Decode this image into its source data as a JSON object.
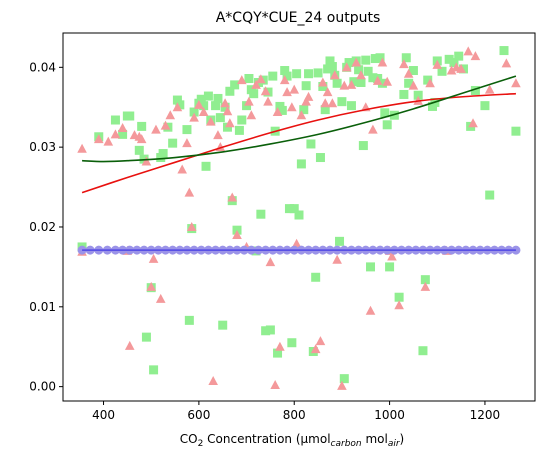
{
  "chart_data": {
    "type": "scatter",
    "title": "A*CQY*CUE_24 outputs",
    "xlabel": {
      "prefix": "CO",
      "sub1": "2",
      "mid": " Concentration (µmol",
      "sub2": "carbon",
      "mid2": " mol",
      "sub3": "air",
      "suffix": ")"
    },
    "ylabel": "",
    "xlim": [
      315,
      1305
    ],
    "ylim": [
      -0.0018,
      0.0443
    ],
    "xticks": [
      400,
      600,
      800,
      1000,
      1200
    ],
    "xtick_labels": [
      "400",
      "600",
      "800",
      "1000",
      "1200"
    ],
    "yticks": [
      0.0,
      0.01,
      0.02,
      0.03,
      0.04
    ],
    "ytick_labels": [
      "0.00",
      "0.01",
      "0.02",
      "0.03",
      "0.04"
    ],
    "grid": false,
    "colors": {
      "green_points": "#90ee90",
      "red_points": "#f4999b",
      "blue_points": "#9b93e8",
      "blue_line": "#4f46e5",
      "red_curve": "#e8110f",
      "green_curve": "#0a5f0a"
    },
    "series": [
      {
        "marker": "square",
        "color": "#90ee90",
        "points": [
          [
            355,
            0.0175
          ],
          [
            390,
            0.0313
          ],
          [
            425,
            0.0334
          ],
          [
            440,
            0.0316
          ],
          [
            450,
            0.0339
          ],
          [
            455,
            0.0339
          ],
          [
            475,
            0.0296
          ],
          [
            480,
            0.0326
          ],
          [
            485,
            0.0285
          ],
          [
            490,
            0.0062
          ],
          [
            500,
            0.0124
          ],
          [
            505,
            0.0021
          ],
          [
            520,
            0.0287
          ],
          [
            525,
            0.0292
          ],
          [
            535,
            0.0325
          ],
          [
            545,
            0.0305
          ],
          [
            555,
            0.0359
          ],
          [
            560,
            0.0353
          ],
          [
            575,
            0.0322
          ],
          [
            580,
            0.0083
          ],
          [
            585,
            0.0198
          ],
          [
            590,
            0.0344
          ],
          [
            600,
            0.0355
          ],
          [
            605,
            0.036
          ],
          [
            610,
            0.0352
          ],
          [
            615,
            0.0276
          ],
          [
            620,
            0.0364
          ],
          [
            625,
            0.0334
          ],
          [
            635,
            0.0352
          ],
          [
            640,
            0.0361
          ],
          [
            645,
            0.0337
          ],
          [
            650,
            0.0077
          ],
          [
            655,
            0.035
          ],
          [
            660,
            0.0325
          ],
          [
            665,
            0.037
          ],
          [
            670,
            0.0233
          ],
          [
            675,
            0.0378
          ],
          [
            680,
            0.0196
          ],
          [
            685,
            0.0321
          ],
          [
            690,
            0.0334
          ],
          [
            700,
            0.0352
          ],
          [
            705,
            0.0386
          ],
          [
            710,
            0.0372
          ],
          [
            715,
            0.0367
          ],
          [
            720,
            0.017
          ],
          [
            725,
            0.0381
          ],
          [
            730,
            0.0216
          ],
          [
            735,
            0.0384
          ],
          [
            740,
            0.007
          ],
          [
            745,
            0.0369
          ],
          [
            750,
            0.0071
          ],
          [
            755,
            0.0389
          ],
          [
            760,
            0.032
          ],
          [
            765,
            0.0042
          ],
          [
            770,
            0.0351
          ],
          [
            775,
            0.0346
          ],
          [
            780,
            0.0396
          ],
          [
            785,
            0.0389
          ],
          [
            790,
            0.0223
          ],
          [
            795,
            0.0055
          ],
          [
            800,
            0.0223
          ],
          [
            805,
            0.0392
          ],
          [
            810,
            0.0215
          ],
          [
            815,
            0.0279
          ],
          [
            820,
            0.0347
          ],
          [
            825,
            0.0377
          ],
          [
            830,
            0.0392
          ],
          [
            835,
            0.0304
          ],
          [
            840,
            0.0044
          ],
          [
            845,
            0.0137
          ],
          [
            850,
            0.0393
          ],
          [
            855,
            0.0287
          ],
          [
            860,
            0.0376
          ],
          [
            865,
            0.0347
          ],
          [
            870,
            0.0398
          ],
          [
            875,
            0.0408
          ],
          [
            880,
            0.0401
          ],
          [
            885,
            0.039
          ],
          [
            890,
            0.038
          ],
          [
            895,
            0.0182
          ],
          [
            900,
            0.0357
          ],
          [
            905,
            0.001
          ],
          [
            910,
            0.04
          ],
          [
            915,
            0.0406
          ],
          [
            920,
            0.0352
          ],
          [
            925,
            0.0382
          ],
          [
            930,
            0.0408
          ],
          [
            935,
            0.0397
          ],
          [
            940,
            0.0381
          ],
          [
            945,
            0.0302
          ],
          [
            950,
            0.0409
          ],
          [
            955,
            0.0395
          ],
          [
            960,
            0.015
          ],
          [
            965,
            0.0387
          ],
          [
            970,
            0.0411
          ],
          [
            975,
            0.0386
          ],
          [
            980,
            0.0412
          ],
          [
            985,
            0.038
          ],
          [
            990,
            0.0343
          ],
          [
            995,
            0.0328
          ],
          [
            1000,
            0.015
          ],
          [
            1010,
            0.034
          ],
          [
            1020,
            0.0112
          ],
          [
            1030,
            0.0366
          ],
          [
            1035,
            0.0412
          ],
          [
            1040,
            0.038
          ],
          [
            1050,
            0.0396
          ],
          [
            1060,
            0.0365
          ],
          [
            1070,
            0.0045
          ],
          [
            1075,
            0.0134
          ],
          [
            1080,
            0.0384
          ],
          [
            1090,
            0.0351
          ],
          [
            1095,
            0.0356
          ],
          [
            1100,
            0.0408
          ],
          [
            1110,
            0.0395
          ],
          [
            1125,
            0.041
          ],
          [
            1135,
            0.0406
          ],
          [
            1145,
            0.0414
          ],
          [
            1155,
            0.0398
          ],
          [
            1170,
            0.0326
          ],
          [
            1180,
            0.0371
          ],
          [
            1200,
            0.0352
          ],
          [
            1210,
            0.024
          ],
          [
            1240,
            0.0421
          ],
          [
            1265,
            0.032
          ]
        ]
      },
      {
        "marker": "triangle",
        "color": "#f4999b",
        "points": [
          [
            355,
            0.0169
          ],
          [
            355,
            0.0298
          ],
          [
            390,
            0.031
          ],
          [
            410,
            0.0307
          ],
          [
            425,
            0.0316
          ],
          [
            440,
            0.0324
          ],
          [
            450,
            0.017
          ],
          [
            455,
            0.0051
          ],
          [
            465,
            0.0315
          ],
          [
            475,
            0.0313
          ],
          [
            480,
            0.031
          ],
          [
            490,
            0.0282
          ],
          [
            500,
            0.0125
          ],
          [
            505,
            0.016
          ],
          [
            510,
            0.0322
          ],
          [
            520,
            0.011
          ],
          [
            530,
            0.0327
          ],
          [
            540,
            0.034
          ],
          [
            555,
            0.035
          ],
          [
            565,
            0.0272
          ],
          [
            575,
            0.0305
          ],
          [
            580,
            0.0243
          ],
          [
            585,
            0.02
          ],
          [
            590,
            0.0337
          ],
          [
            600,
            0.0353
          ],
          [
            610,
            0.0344
          ],
          [
            625,
            0.0332
          ],
          [
            630,
            0.0007
          ],
          [
            640,
            0.0315
          ],
          [
            645,
            0.03
          ],
          [
            655,
            0.0355
          ],
          [
            660,
            0.0345
          ],
          [
            665,
            0.033
          ],
          [
            670,
            0.0237
          ],
          [
            680,
            0.019
          ],
          [
            690,
            0.0384
          ],
          [
            700,
            0.0175
          ],
          [
            705,
            0.0357
          ],
          [
            710,
            0.034
          ],
          [
            720,
            0.0378
          ],
          [
            730,
            0.0385
          ],
          [
            740,
            0.037
          ],
          [
            745,
            0.0357
          ],
          [
            750,
            0.0156
          ],
          [
            760,
            0.0002
          ],
          [
            765,
            0.0344
          ],
          [
            770,
            0.005
          ],
          [
            780,
            0.0384
          ],
          [
            785,
            0.0369
          ],
          [
            795,
            0.035
          ],
          [
            800,
            0.0372
          ],
          [
            805,
            0.0179
          ],
          [
            815,
            0.034
          ],
          [
            825,
            0.0357
          ],
          [
            830,
            0.0363
          ],
          [
            845,
            0.0047
          ],
          [
            855,
            0.0057
          ],
          [
            860,
            0.0381
          ],
          [
            865,
            0.0355
          ],
          [
            870,
            0.0369
          ],
          [
            880,
            0.0355
          ],
          [
            885,
            0.039
          ],
          [
            890,
            0.0159
          ],
          [
            900,
            0.0001
          ],
          [
            905,
            0.0377
          ],
          [
            910,
            0.04
          ],
          [
            920,
            0.0378
          ],
          [
            930,
            0.0406
          ],
          [
            940,
            0.039
          ],
          [
            950,
            0.035
          ],
          [
            960,
            0.0095
          ],
          [
            965,
            0.0322
          ],
          [
            975,
            0.0383
          ],
          [
            985,
            0.0406
          ],
          [
            995,
            0.0382
          ],
          [
            1000,
            0.017
          ],
          [
            1005,
            0.0163
          ],
          [
            1020,
            0.0102
          ],
          [
            1030,
            0.0404
          ],
          [
            1040,
            0.0392
          ],
          [
            1050,
            0.0377
          ],
          [
            1060,
            0.0358
          ],
          [
            1075,
            0.0125
          ],
          [
            1085,
            0.038
          ],
          [
            1100,
            0.0403
          ],
          [
            1120,
            0.017
          ],
          [
            1130,
            0.0396
          ],
          [
            1140,
            0.04
          ],
          [
            1150,
            0.0398
          ],
          [
            1165,
            0.042
          ],
          [
            1175,
            0.033
          ],
          [
            1180,
            0.0414
          ],
          [
            1210,
            0.0372
          ],
          [
            1245,
            0.0405
          ],
          [
            1265,
            0.038
          ]
        ]
      },
      {
        "marker": "circle",
        "color": "#9b93e8",
        "y_constant": 0.0171,
        "x": [
          355,
          372,
          390,
          408,
          425,
          440,
          455,
          470,
          485,
          500,
          515,
          530,
          545,
          560,
          575,
          590,
          605,
          620,
          635,
          650,
          665,
          680,
          695,
          710,
          725,
          740,
          755,
          770,
          785,
          800,
          815,
          830,
          845,
          860,
          875,
          890,
          905,
          920,
          935,
          950,
          965,
          980,
          995,
          1010,
          1025,
          1040,
          1055,
          1070,
          1085,
          1100,
          1115,
          1130,
          1145,
          1160,
          1175,
          1190,
          1205,
          1220,
          1235,
          1250,
          1265
        ]
      }
    ],
    "lines": [
      {
        "name": "",
        "color": "#4f46e5",
        "type": "constant",
        "y": 0.0171,
        "x_range": [
          355,
          1265
        ]
      },
      {
        "name": "",
        "color": "#e8110f",
        "type": "curve",
        "points": [
          [
            355,
            0.0243
          ],
          [
            450,
            0.0262
          ],
          [
            550,
            0.0281
          ],
          [
            650,
            0.03
          ],
          [
            750,
            0.0318
          ],
          [
            850,
            0.0334
          ],
          [
            950,
            0.0347
          ],
          [
            1050,
            0.0357
          ],
          [
            1150,
            0.0363
          ],
          [
            1265,
            0.0367
          ]
        ]
      },
      {
        "name": "",
        "color": "#0a5f0a",
        "type": "curve",
        "points": [
          [
            355,
            0.0283
          ],
          [
            400,
            0.0282
          ],
          [
            450,
            0.0283
          ],
          [
            550,
            0.0287
          ],
          [
            650,
            0.0294
          ],
          [
            750,
            0.0304
          ],
          [
            850,
            0.0316
          ],
          [
            950,
            0.0331
          ],
          [
            1050,
            0.0348
          ],
          [
            1150,
            0.0367
          ],
          [
            1265,
            0.0389
          ]
        ]
      }
    ]
  }
}
